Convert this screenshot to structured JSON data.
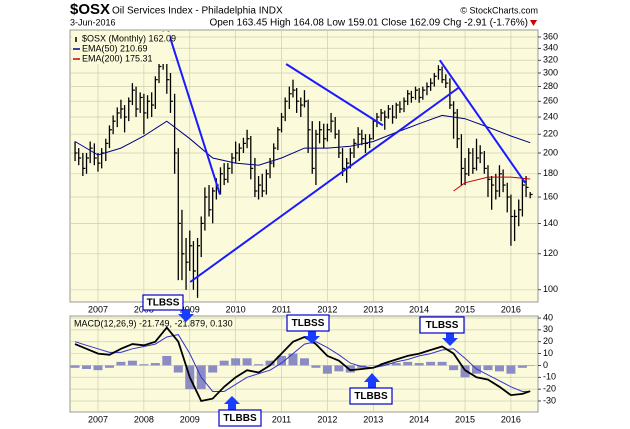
{
  "chart_data": [
    {
      "type": "ohlc",
      "title": "$OSX",
      "subtitle": "Oil Services Index - Philadelphia INDX",
      "source": "© StockCharts.com",
      "date": "3-Jun-2016",
      "quote": "Open 163.45 High 164.08 Low 159.01 Close 162.09 Chg -2.91 (-1.76%)",
      "log_scale": true,
      "grid": true,
      "xlim": [
        2006.39,
        2016.59
      ],
      "xticks": [
        2007,
        2008,
        2009,
        2010,
        2011,
        2012,
        2013,
        2014,
        2015,
        2016
      ],
      "ylim": [
        94,
        373
      ],
      "yticks": [
        100,
        120,
        140,
        160,
        180,
        200,
        220,
        240,
        260,
        280,
        300,
        320,
        340,
        360
      ],
      "x": [
        2006.5,
        2006.58,
        2006.67,
        2006.75,
        2006.83,
        2006.92,
        2007,
        2007.08,
        2007.17,
        2007.25,
        2007.33,
        2007.42,
        2007.5,
        2007.58,
        2007.67,
        2007.75,
        2007.83,
        2007.92,
        2008,
        2008.08,
        2008.17,
        2008.25,
        2008.33,
        2008.42,
        2008.5,
        2008.58,
        2008.67,
        2008.75,
        2008.83,
        2008.92,
        2009,
        2009.08,
        2009.17,
        2009.25,
        2009.33,
        2009.42,
        2009.5,
        2009.58,
        2009.67,
        2009.75,
        2009.83,
        2009.92,
        2010,
        2010.08,
        2010.17,
        2010.25,
        2010.33,
        2010.42,
        2010.5,
        2010.58,
        2010.67,
        2010.75,
        2010.83,
        2010.92,
        2011,
        2011.08,
        2011.17,
        2011.25,
        2011.33,
        2011.42,
        2011.5,
        2011.58,
        2011.67,
        2011.75,
        2011.83,
        2011.92,
        2012,
        2012.08,
        2012.17,
        2012.25,
        2012.33,
        2012.42,
        2012.5,
        2012.58,
        2012.67,
        2012.75,
        2012.83,
        2012.92,
        2013,
        2013.08,
        2013.17,
        2013.25,
        2013.33,
        2013.42,
        2013.5,
        2013.58,
        2013.67,
        2013.75,
        2013.83,
        2013.92,
        2014,
        2014.08,
        2014.17,
        2014.25,
        2014.33,
        2014.42,
        2014.5,
        2014.58,
        2014.67,
        2014.75,
        2014.83,
        2014.92,
        2015,
        2015.08,
        2015.17,
        2015.25,
        2015.33,
        2015.42,
        2015.5,
        2015.58,
        2015.67,
        2015.75,
        2015.83,
        2015.92,
        2016,
        2016.08,
        2016.17,
        2016.25,
        2016.33,
        2016.42
      ],
      "series": [
        {
          "name": "$OSX (Monthly) 162.09",
          "color": "#000000",
          "high": [
            212,
            205,
            200,
            200,
            212,
            210,
            200,
            205,
            215,
            230,
            242,
            252,
            262,
            255,
            265,
            285,
            280,
            272,
            270,
            268,
            272,
            295,
            325,
            370,
            345,
            300,
            270,
            205,
            150,
            130,
            135,
            128,
            130,
            145,
            168,
            170,
            168,
            176,
            186,
            190,
            190,
            200,
            212,
            210,
            216,
            225,
            218,
            195,
            178,
            180,
            184,
            195,
            210,
            228,
            245,
            265,
            280,
            290,
            278,
            265,
            275,
            262,
            235,
            225,
            235,
            232,
            232,
            245,
            240,
            225,
            205,
            195,
            205,
            215,
            228,
            225,
            220,
            220,
            238,
            245,
            250,
            248,
            255,
            255,
            258,
            260,
            265,
            275,
            274,
            280,
            278,
            280,
            286,
            292,
            300,
            312,
            310,
            298,
            292,
            260,
            250,
            220,
            195,
            205,
            205,
            215,
            208,
            202,
            188,
            178,
            180,
            188,
            184,
            172,
            162,
            150,
            158,
            175,
            178,
            164.08
          ],
          "low": [
            192,
            188,
            178,
            180,
            190,
            188,
            182,
            185,
            192,
            205,
            220,
            228,
            238,
            222,
            235,
            255,
            240,
            245,
            220,
            238,
            240,
            250,
            285,
            305,
            270,
            245,
            180,
            105,
            105,
            100,
            110,
            100,
            96,
            118,
            135,
            145,
            140,
            158,
            162,
            170,
            172,
            180,
            190,
            192,
            200,
            205,
            175,
            160,
            158,
            160,
            162,
            176,
            186,
            203,
            222,
            235,
            250,
            265,
            245,
            240,
            252,
            200,
            180,
            170,
            210,
            205,
            212,
            222,
            215,
            195,
            178,
            172,
            185,
            195,
            205,
            208,
            200,
            205,
            214,
            228,
            235,
            225,
            238,
            232,
            238,
            245,
            246,
            255,
            258,
            262,
            258,
            262,
            268,
            274,
            280,
            290,
            285,
            278,
            250,
            215,
            205,
            170,
            170,
            178,
            180,
            183,
            190,
            180,
            160,
            150,
            158,
            160,
            164,
            148,
            125,
            128,
            138,
            145,
            160,
            159.01
          ],
          "close": [
            200,
            195,
            185,
            195,
            205,
            195,
            190,
            200,
            210,
            225,
            235,
            245,
            250,
            240,
            260,
            275,
            250,
            265,
            245,
            260,
            255,
            290,
            310,
            340,
            290,
            260,
            200,
            140,
            120,
            115,
            125,
            110,
            125,
            140,
            160,
            150,
            165,
            170,
            180,
            175,
            185,
            195,
            200,
            205,
            210,
            215,
            185,
            165,
            170,
            165,
            180,
            190,
            205,
            225,
            240,
            260,
            270,
            275,
            260,
            255,
            260,
            225,
            185,
            220,
            225,
            215,
            225,
            235,
            220,
            200,
            185,
            190,
            200,
            210,
            220,
            215,
            210,
            215,
            235,
            240,
            245,
            240,
            250,
            240,
            255,
            250,
            260,
            270,
            265,
            275,
            265,
            275,
            280,
            285,
            295,
            305,
            290,
            285,
            255,
            245,
            215,
            185,
            180,
            200,
            185,
            195,
            200,
            185,
            175,
            170,
            165,
            180,
            170,
            160,
            145,
            145,
            150,
            170,
            168,
            162.09
          ]
        },
        {
          "name": "EMA(50) 210.69",
          "color": "#000080",
          "x": [
            2006.5,
            2007,
            2007.5,
            2008,
            2008.5,
            2009,
            2009.5,
            2010,
            2010.5,
            2011,
            2011.5,
            2012,
            2012.5,
            2013,
            2013.5,
            2014,
            2014.5,
            2015,
            2015.5,
            2016,
            2016.42
          ],
          "values": [
            212,
            198,
            205,
            218,
            235,
            215,
            195,
            190,
            188,
            195,
            205,
            205,
            207,
            212,
            222,
            232,
            242,
            238,
            228,
            218,
            210.69
          ]
        },
        {
          "name": "EMA(200) 175.31",
          "color": "#cc0000",
          "x": [
            2014.75,
            2015,
            2015.5,
            2016,
            2016.42
          ],
          "values": [
            165,
            172,
            177,
            177,
            175.31
          ]
        }
      ],
      "trendline_color": "#1a1aff",
      "trendlines": [
        {
          "x": [
            2008.53,
            2009.66
          ],
          "values": [
            370,
            162
          ]
        },
        {
          "x": [
            2009.01,
            2014.85
          ],
          "values": [
            104,
            278
          ]
        },
        {
          "x": [
            2011.1,
            2013.21
          ],
          "values": [
            314,
            230
          ]
        },
        {
          "x": [
            2014.45,
            2016.31
          ],
          "values": [
            320,
            172
          ]
        }
      ]
    },
    {
      "type": "macd",
      "title": "MACD(12,26,9) -21.749, -21.879, 0.130",
      "grid": true,
      "xlim": [
        2006.39,
        2016.59
      ],
      "xticks": [
        2007,
        2008,
        2009,
        2010,
        2011,
        2012,
        2013,
        2014,
        2015,
        2016
      ],
      "ylim": [
        -39.3,
        41.7
      ],
      "yticks": [
        40,
        30,
        20,
        10,
        0,
        -10,
        -20,
        -30
      ],
      "x": [
        2006.5,
        2006.75,
        2007,
        2007.25,
        2007.5,
        2007.75,
        2008,
        2008.25,
        2008.5,
        2008.75,
        2009,
        2009.25,
        2009.5,
        2009.75,
        2010,
        2010.25,
        2010.5,
        2010.75,
        2011,
        2011.25,
        2011.5,
        2011.75,
        2012,
        2012.25,
        2012.5,
        2012.75,
        2013,
        2013.25,
        2013.5,
        2013.75,
        2014,
        2014.25,
        2014.5,
        2014.75,
        2015,
        2015.25,
        2015.5,
        2015.75,
        2016,
        2016.25,
        2016.42
      ],
      "series": [
        {
          "style": "bar",
          "color": "#8c8cc4",
          "values": [
            -2,
            -3,
            -4,
            -2,
            3,
            4,
            1,
            2,
            8,
            -6,
            -20,
            -20,
            -6,
            4,
            6,
            6,
            1,
            4,
            8,
            10,
            6,
            -2,
            -7,
            -5,
            -6,
            -2,
            0,
            2,
            2,
            3,
            2,
            3,
            3,
            -4,
            -10,
            -7,
            -4,
            -5,
            -7,
            -2,
            0.13
          ]
        },
        {
          "style": "line",
          "color": "#3333cc",
          "values": [
            20,
            17,
            14,
            11,
            11,
            14,
            16,
            18,
            24,
            26,
            10,
            -10,
            -22,
            -22,
            -16,
            -10,
            -7,
            -4,
            2,
            10,
            18,
            20,
            15,
            9,
            2,
            -1,
            -2,
            0,
            3,
            5,
            8,
            10,
            13,
            14,
            6,
            -3,
            -8,
            -13,
            -18,
            -22,
            -21.879
          ]
        },
        {
          "style": "line",
          "color": "#000000",
          "values": [
            18,
            14,
            10,
            9,
            14,
            18,
            17,
            20,
            32,
            20,
            -10,
            -30,
            -28,
            -18,
            -10,
            -4,
            -6,
            0,
            10,
            20,
            24,
            18,
            8,
            4,
            -4,
            -3,
            -2,
            2,
            5,
            8,
            10,
            13,
            16,
            10,
            -4,
            -10,
            -12,
            -18,
            -25,
            -24,
            -21.749
          ]
        }
      ],
      "annotations": [
        "TLBSS",
        "TLBSS",
        "TLBBS",
        "TLBBS",
        "TLBSS"
      ]
    }
  ]
}
